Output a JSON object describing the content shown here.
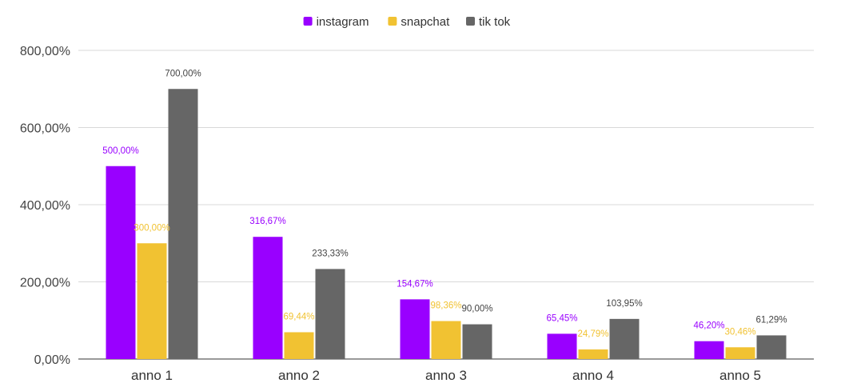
{
  "chart_data": {
    "type": "bar",
    "title": "",
    "xlabel": "",
    "ylabel": "",
    "categories": [
      "anno 1",
      "anno 2",
      "anno 3",
      "anno 4",
      "anno 5"
    ],
    "series": [
      {
        "name": "instagram",
        "color": "#9900ff",
        "values": [
          500.0,
          316.67,
          154.67,
          65.45,
          46.2
        ],
        "labels": [
          "500,00%",
          "316,67%",
          "154,67%",
          "65,45%",
          "46,20%"
        ]
      },
      {
        "name": "snapchat",
        "color": "#f1c232",
        "values": [
          300.0,
          69.44,
          98.36,
          24.79,
          30.46
        ],
        "labels": [
          "300,00%",
          "69,44%",
          "98,36%",
          "24,79%",
          "30,46%"
        ]
      },
      {
        "name": "tik tok",
        "color": "#666666",
        "values": [
          700.0,
          233.33,
          90.0,
          103.95,
          61.29
        ],
        "labels": [
          "700,00%",
          "233,33%",
          "90,00%",
          "103,95%",
          "61,29%"
        ]
      }
    ],
    "ylim": [
      0,
      800
    ],
    "yticks": [
      0,
      200,
      400,
      600,
      800
    ],
    "ytick_labels": [
      "0,00%",
      "200,00%",
      "400,00%",
      "600,00%",
      "800,00%"
    ],
    "grid": true,
    "legend": "top-center"
  }
}
